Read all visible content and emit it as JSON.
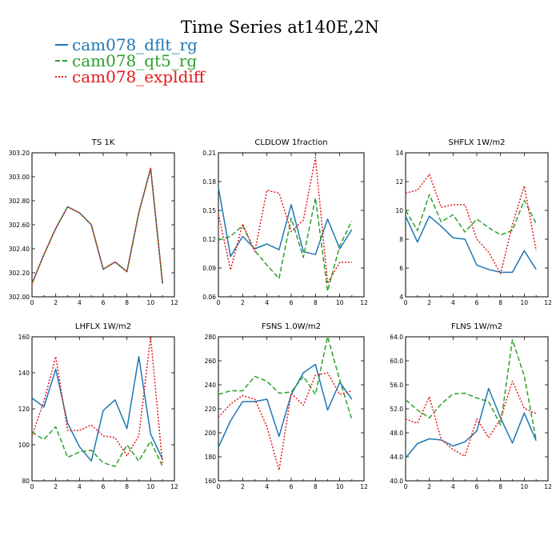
{
  "figure_title": "Time Series at140E,2N",
  "legend": [
    {
      "label": "cam078_dflt_rg",
      "color": "#1f77b4",
      "style": "solid"
    },
    {
      "label": "cam078_qt5_rg",
      "color": "#2ca02c",
      "style": "dash"
    },
    {
      "label": "cam078_expldiff",
      "color": "#e41a1c",
      "style": "dot"
    }
  ],
  "chart_data": [
    {
      "type": "line",
      "title": "TS   1K",
      "x": [
        0,
        1,
        2,
        3,
        4,
        5,
        6,
        7,
        8,
        9,
        10,
        11
      ],
      "xlim": [
        0,
        12
      ],
      "xticks": [
        "0",
        "2",
        "4",
        "6",
        "8",
        "10",
        "12"
      ],
      "ylim": [
        302.0,
        303.2
      ],
      "yticks": [
        "302.00",
        "302.20",
        "302.40",
        "302.60",
        "302.80",
        "303.00",
        "303.20"
      ],
      "series": [
        {
          "name": "cam078_dflt_rg",
          "values": [
            302.11,
            302.35,
            302.57,
            302.75,
            302.7,
            302.6,
            302.23,
            302.29,
            302.21,
            302.7,
            303.07,
            302.11
          ]
        },
        {
          "name": "cam078_qt5_rg",
          "values": [
            302.11,
            302.35,
            302.57,
            302.75,
            302.7,
            302.6,
            302.23,
            302.29,
            302.21,
            302.7,
            303.07,
            302.11
          ]
        },
        {
          "name": "cam078_expldiff",
          "values": [
            302.11,
            302.35,
            302.57,
            302.75,
            302.7,
            302.6,
            302.23,
            302.29,
            302.21,
            302.7,
            303.07,
            302.11
          ]
        }
      ]
    },
    {
      "type": "line",
      "title": "CLDLOW   1fraction",
      "x": [
        0,
        1,
        2,
        3,
        4,
        5,
        6,
        7,
        8,
        9,
        10,
        11
      ],
      "xlim": [
        0,
        12
      ],
      "xticks": [
        "0",
        "2",
        "4",
        "6",
        "8",
        "10",
        "12"
      ],
      "ylim": [
        0.06,
        0.21
      ],
      "yticks": [
        "0.06",
        "0.09",
        "0.12",
        "0.15",
        "0.18",
        "0.21"
      ],
      "series": [
        {
          "name": "cam078_dflt_rg",
          "values": [
            0.174,
            0.102,
            0.123,
            0.11,
            0.115,
            0.109,
            0.156,
            0.107,
            0.104,
            0.141,
            0.11,
            0.13
          ]
        },
        {
          "name": "cam078_qt5_rg",
          "values": [
            0.119,
            0.123,
            0.134,
            0.108,
            0.093,
            0.079,
            0.142,
            0.101,
            0.163,
            0.066,
            0.113,
            0.139
          ]
        },
        {
          "name": "cam078_expldiff",
          "values": [
            0.146,
            0.088,
            0.136,
            0.107,
            0.171,
            0.168,
            0.128,
            0.14,
            0.205,
            0.074,
            0.096,
            0.096
          ]
        }
      ]
    },
    {
      "type": "line",
      "title": "SHFLX   1W/m2",
      "x": [
        0,
        1,
        2,
        3,
        4,
        5,
        6,
        7,
        8,
        9,
        10,
        11
      ],
      "xlim": [
        0,
        12
      ],
      "xticks": [
        "0",
        "2",
        "4",
        "6",
        "8",
        "10",
        "12"
      ],
      "ylim": [
        4,
        14
      ],
      "yticks": [
        "4",
        "6",
        "8",
        "10",
        "12",
        "14"
      ],
      "series": [
        {
          "name": "cam078_dflt_rg",
          "values": [
            9.6,
            7.8,
            9.6,
            8.9,
            8.1,
            8.0,
            6.2,
            5.9,
            5.7,
            5.7,
            7.2,
            5.9
          ]
        },
        {
          "name": "cam078_qt5_rg",
          "values": [
            10.0,
            8.6,
            11.1,
            9.2,
            9.7,
            8.5,
            9.4,
            8.8,
            8.3,
            8.6,
            10.7,
            9.1
          ]
        },
        {
          "name": "cam078_expldiff",
          "values": [
            11.2,
            11.4,
            12.5,
            10.2,
            10.4,
            10.4,
            8.0,
            7.1,
            5.6,
            9.0,
            11.7,
            7.2
          ]
        }
      ]
    },
    {
      "type": "line",
      "title": "LHFLX   1W/m2",
      "x": [
        0,
        1,
        2,
        3,
        4,
        5,
        6,
        7,
        8,
        9,
        10,
        11
      ],
      "xlim": [
        0,
        12
      ],
      "xticks": [
        "0",
        "2",
        "4",
        "6",
        "8",
        "10",
        "12"
      ],
      "ylim": [
        80,
        160
      ],
      "yticks": [
        "80",
        "100",
        "120",
        "140",
        "160"
      ],
      "series": [
        {
          "name": "cam078_dflt_rg",
          "values": [
            126,
            121,
            142,
            112,
            99,
            91,
            119,
            125,
            109,
            149,
            106,
            92
          ]
        },
        {
          "name": "cam078_qt5_rg",
          "values": [
            107,
            103,
            110,
            93,
            96,
            97,
            90,
            88,
            100,
            91,
            102,
            88
          ]
        },
        {
          "name": "cam078_expldiff",
          "values": [
            105,
            124,
            149,
            108,
            108,
            111,
            105,
            104,
            94,
            105,
            160,
            89
          ]
        }
      ]
    },
    {
      "type": "line",
      "title": "FSNS   1.0W/m2",
      "x": [
        0,
        1,
        2,
        3,
        4,
        5,
        6,
        7,
        8,
        9,
        10,
        11
      ],
      "xlim": [
        0,
        12
      ],
      "xticks": [
        "0",
        "2",
        "4",
        "6",
        "8",
        "10",
        "12"
      ],
      "ylim": [
        160,
        280
      ],
      "yticks": [
        "160",
        "180",
        "200",
        "220",
        "240",
        "260",
        "280"
      ],
      "series": [
        {
          "name": "cam078_dflt_rg",
          "values": [
            188,
            210,
            226,
            226,
            228,
            197,
            232,
            250,
            257,
            219,
            242,
            228
          ]
        },
        {
          "name": "cam078_qt5_rg",
          "values": [
            232,
            235,
            235,
            247,
            243,
            233,
            234,
            247,
            232,
            280,
            244,
            211
          ]
        },
        {
          "name": "cam078_expldiff",
          "values": [
            213,
            224,
            231,
            228,
            205,
            169,
            233,
            223,
            248,
            250,
            232,
            235
          ]
        }
      ]
    },
    {
      "type": "line",
      "title": "FLNS   1W/m2",
      "x": [
        0,
        1,
        2,
        3,
        4,
        5,
        6,
        7,
        8,
        9,
        10,
        11
      ],
      "xlim": [
        0,
        12
      ],
      "xticks": [
        "0",
        "2",
        "4",
        "6",
        "8",
        "10",
        "12"
      ],
      "ylim": [
        40.0,
        64.0
      ],
      "yticks": [
        "40.0",
        "44.0",
        "48.0",
        "52.0",
        "56.0",
        "60.0",
        "64.0"
      ],
      "series": [
        {
          "name": "cam078_dflt_rg",
          "values": [
            43.8,
            46.2,
            47.0,
            46.8,
            45.8,
            46.5,
            48.3,
            55.4,
            50.5,
            46.3,
            51.3,
            46.7
          ]
        },
        {
          "name": "cam078_qt5_rg",
          "values": [
            53.5,
            51.8,
            50.5,
            52.8,
            54.5,
            54.6,
            53.8,
            53.2,
            49.3,
            63.5,
            57.5,
            46.8
          ]
        },
        {
          "name": "cam078_expldiff",
          "values": [
            50.3,
            49.6,
            54.0,
            46.9,
            45.2,
            44.1,
            50.3,
            47.2,
            50.3,
            56.6,
            52.1,
            51.2
          ]
        }
      ]
    }
  ]
}
